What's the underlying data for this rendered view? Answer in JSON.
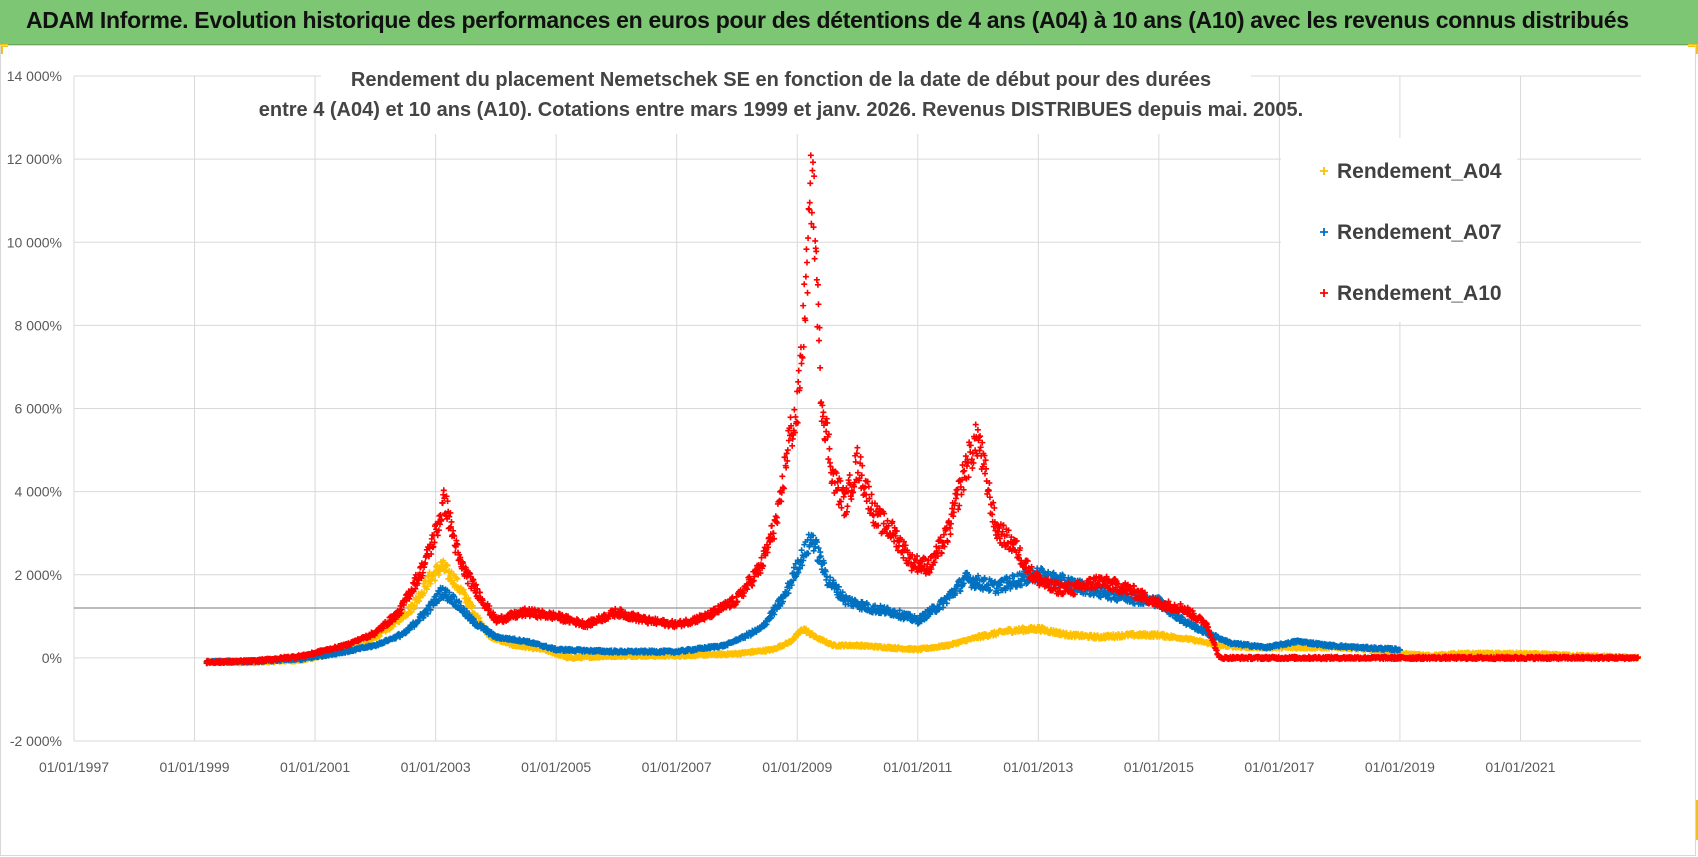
{
  "header": {
    "title": "ADAM Informe. Evolution historique des performances en euros pour des détentions de 4 ans (A04) à 10 ans (A10) avec les revenus connus distribués"
  },
  "colors": {
    "banner": "#7cc674",
    "A04": "#ffc000",
    "A07": "#0070c0",
    "A10": "#ff0000",
    "grid": "#d9d9d9",
    "refline": "#a6a6a6"
  },
  "chart_data": {
    "type": "scatter",
    "title_lines": [
      "Rendement du placement Nemetschek SE en fonction de la date de début pour des durées",
      "entre 4 (A04) et 10 ans (A10). Cotations entre mars 1999 et janv. 2026. Revenus DISTRIBUES depuis mai. 2005."
    ],
    "xlabel": "",
    "ylabel": "",
    "xlim": [
      1997.0,
      2023.0
    ],
    "ylim": [
      -2000,
      14000
    ],
    "y_ticks": [
      -2000,
      0,
      2000,
      4000,
      6000,
      8000,
      10000,
      12000,
      14000
    ],
    "y_tick_labels": [
      "-2 000%",
      "0%",
      "2 000%",
      "4 000%",
      "6 000%",
      "8 000%",
      "10 000%",
      "12 000%",
      "14 000%"
    ],
    "x_ticks": [
      1997,
      1999,
      2001,
      2003,
      2005,
      2007,
      2009,
      2011,
      2013,
      2015,
      2017,
      2019,
      2021
    ],
    "x_tick_labels": [
      "01/01/1997",
      "01/01/1999",
      "01/01/2001",
      "01/01/2003",
      "01/01/2005",
      "01/01/2007",
      "01/01/2009",
      "01/01/2011",
      "01/01/2013",
      "01/01/2015",
      "01/01/2017",
      "01/01/2019",
      "01/01/2021"
    ],
    "reference_line_y": 1200,
    "marker": "+",
    "legend_position": "top-right",
    "series": [
      {
        "name": "Rendement_A04",
        "x_range": [
          1999.2,
          2022.95
        ],
        "x": [
          1999.2,
          2000.0,
          2000.8,
          2001.3,
          2001.8,
          2002.2,
          2002.6,
          2002.9,
          2003.1,
          2003.3,
          2003.6,
          2003.9,
          2004.3,
          2004.8,
          2005.2,
          2006.0,
          2007.0,
          2008.0,
          2008.6,
          2008.9,
          2009.1,
          2009.3,
          2009.6,
          2010.0,
          2010.5,
          2011.0,
          2011.5,
          2012.0,
          2012.5,
          2013.0,
          2013.5,
          2014.0,
          2014.5,
          2015.0,
          2015.5,
          2016.0,
          2016.5,
          2017.0,
          2017.5,
          2018.0,
          2018.5,
          2019.0,
          2019.5,
          2020.0,
          2021.0,
          2022.0,
          2022.95
        ],
        "values": [
          -100,
          -100,
          -50,
          100,
          300,
          700,
          1200,
          1900,
          2200,
          1900,
          1200,
          500,
          300,
          200,
          0,
          50,
          50,
          100,
          200,
          400,
          700,
          500,
          300,
          300,
          250,
          200,
          300,
          500,
          650,
          700,
          550,
          500,
          550,
          550,
          450,
          300,
          250,
          250,
          250,
          250,
          200,
          100,
          50,
          100,
          100,
          50,
          0
        ]
      },
      {
        "name": "Rendement_A07",
        "x_range": [
          1999.2,
          2019.0
        ],
        "x": [
          1999.2,
          2000.0,
          2000.8,
          2001.5,
          2002.0,
          2002.5,
          2002.9,
          2003.1,
          2003.3,
          2003.6,
          2004.0,
          2004.5,
          2005.0,
          2006.0,
          2007.0,
          2007.8,
          2008.4,
          2008.8,
          2009.0,
          2009.25,
          2009.5,
          2009.8,
          2010.2,
          2010.6,
          2011.0,
          2011.4,
          2011.8,
          2012.3,
          2012.7,
          2013.0,
          2013.5,
          2014.0,
          2014.5,
          2015.0,
          2015.4,
          2015.8,
          2016.2,
          2016.8,
          2017.3,
          2017.8,
          2018.3,
          2019.0
        ],
        "values": [
          -100,
          -80,
          -20,
          150,
          300,
          600,
          1200,
          1600,
          1400,
          900,
          500,
          400,
          200,
          150,
          150,
          300,
          700,
          1500,
          2200,
          2900,
          1900,
          1400,
          1200,
          1100,
          900,
          1300,
          1900,
          1700,
          1900,
          2000,
          1800,
          1600,
          1450,
          1350,
          900,
          600,
          350,
          250,
          400,
          300,
          250,
          200
        ]
      },
      {
        "name": "Rendement_A10",
        "x_range": [
          1999.2,
          2022.95
        ],
        "x": [
          1999.2,
          2000.0,
          2000.8,
          2001.5,
          2002.0,
          2002.4,
          2002.8,
          2003.0,
          2003.15,
          2003.4,
          2003.6,
          2004.0,
          2004.5,
          2005.0,
          2005.5,
          2006.0,
          2006.5,
          2007.0,
          2007.5,
          2008.0,
          2008.4,
          2008.7,
          2008.85,
          2009.0,
          2009.15,
          2009.25,
          2009.4,
          2009.6,
          2009.8,
          2010.0,
          2010.3,
          2010.6,
          2010.9,
          2011.2,
          2011.5,
          2011.8,
          2012.0,
          2012.3,
          2012.6,
          2012.9,
          2013.2,
          2013.6,
          2014.0,
          2014.5,
          2015.0,
          2015.4,
          2015.8,
          2016.0,
          2017.0,
          2018.0,
          2019.0,
          2020.0,
          2021.0,
          2022.0,
          2022.95
        ],
        "values": [
          -100,
          -80,
          50,
          300,
          600,
          1100,
          2200,
          3000,
          3800,
          2300,
          1800,
          900,
          1100,
          1000,
          800,
          1100,
          900,
          800,
          1000,
          1400,
          2200,
          3500,
          5200,
          5900,
          9000,
          11800,
          6300,
          4300,
          3700,
          4700,
          3400,
          3000,
          2300,
          2200,
          3000,
          4600,
          5300,
          3100,
          2700,
          2000,
          1700,
          1650,
          1850,
          1650,
          1300,
          1200,
          800,
          0,
          0,
          0,
          0,
          0,
          0,
          0,
          0
        ]
      }
    ]
  }
}
